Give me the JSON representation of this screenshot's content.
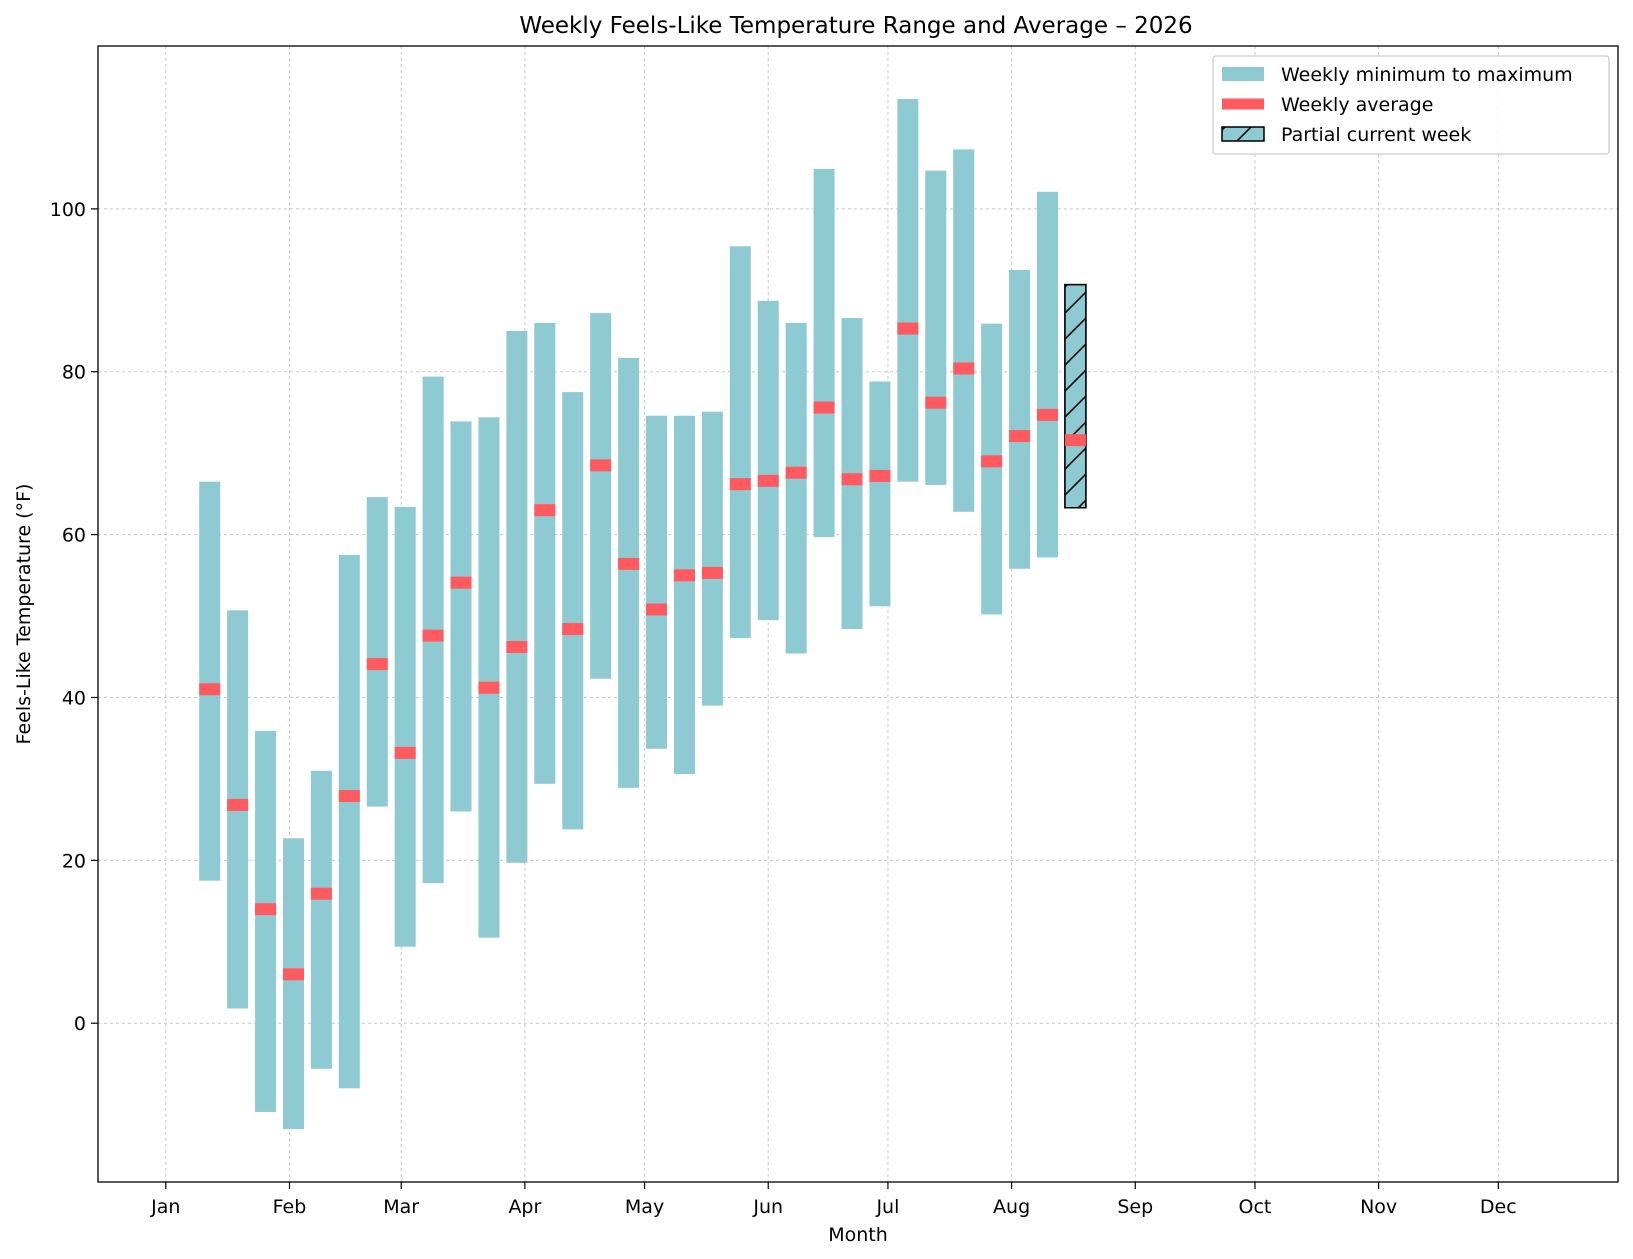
{
  "chart_data": {
    "type": "bar",
    "subtype": "floating-range-with-average",
    "title": "Weekly Feels-Like Temperature Range and Average – 2026",
    "xlabel": "Month",
    "ylabel": "Feels-Like Temperature (°F)",
    "x_axis_type": "date",
    "xlim": [
      "2025-12-15",
      "2026-12-31"
    ],
    "ylim": [
      -19.5,
      120
    ],
    "x_ticks": [
      {
        "date": "2026-01-01",
        "label": "Jan"
      },
      {
        "date": "2026-02-01",
        "label": "Feb"
      },
      {
        "date": "2026-03-01",
        "label": "Mar"
      },
      {
        "date": "2026-04-01",
        "label": "Apr"
      },
      {
        "date": "2026-05-01",
        "label": "May"
      },
      {
        "date": "2026-06-01",
        "label": "Jun"
      },
      {
        "date": "2026-07-01",
        "label": "Jul"
      },
      {
        "date": "2026-08-01",
        "label": "Aug"
      },
      {
        "date": "2026-09-01",
        "label": "Sep"
      },
      {
        "date": "2026-10-01",
        "label": "Oct"
      },
      {
        "date": "2026-11-01",
        "label": "Nov"
      },
      {
        "date": "2026-12-01",
        "label": "Dec"
      }
    ],
    "y_ticks": [
      0,
      20,
      40,
      60,
      80,
      100
    ],
    "grid": true,
    "legend_position": "top-right",
    "legend": [
      {
        "label": "Weekly minimum to maximum",
        "kind": "range"
      },
      {
        "label": "Weekly average",
        "kind": "average"
      },
      {
        "label": "Partial current week",
        "kind": "partial"
      }
    ],
    "colors": {
      "range": "#8ecad1",
      "average": "#ff5a5f",
      "partial_edge": "#000000",
      "grid": "#c8c8c8"
    },
    "weeks": [
      {
        "date": "2026-01-12",
        "min": 17.5,
        "max": 66.5,
        "avg": 41.0
      },
      {
        "date": "2026-01-19",
        "min": 1.8,
        "max": 50.7,
        "avg": 26.8
      },
      {
        "date": "2026-01-26",
        "min": -10.9,
        "max": 35.9,
        "avg": 14.0
      },
      {
        "date": "2026-02-02",
        "min": -13.0,
        "max": 22.7,
        "avg": 6.0
      },
      {
        "date": "2026-02-09",
        "min": -5.6,
        "max": 31.0,
        "avg": 15.9
      },
      {
        "date": "2026-02-16",
        "min": -8.0,
        "max": 57.5,
        "avg": 27.9
      },
      {
        "date": "2026-02-23",
        "min": 26.6,
        "max": 64.6,
        "avg": 44.1
      },
      {
        "date": "2026-03-02",
        "min": 9.4,
        "max": 63.4,
        "avg": 33.2
      },
      {
        "date": "2026-03-09",
        "min": 17.2,
        "max": 79.4,
        "avg": 47.6
      },
      {
        "date": "2026-03-16",
        "min": 26.0,
        "max": 73.9,
        "avg": 54.1
      },
      {
        "date": "2026-03-23",
        "min": 10.5,
        "max": 74.4,
        "avg": 41.2
      },
      {
        "date": "2026-03-30",
        "min": 19.7,
        "max": 85.0,
        "avg": 46.2
      },
      {
        "date": "2026-04-06",
        "min": 29.4,
        "max": 86.0,
        "avg": 63.0
      },
      {
        "date": "2026-04-13",
        "min": 23.8,
        "max": 77.5,
        "avg": 48.4
      },
      {
        "date": "2026-04-20",
        "min": 42.3,
        "max": 87.2,
        "avg": 68.5
      },
      {
        "date": "2026-04-27",
        "min": 28.9,
        "max": 81.7,
        "avg": 56.4
      },
      {
        "date": "2026-05-04",
        "min": 33.7,
        "max": 74.6,
        "avg": 50.8
      },
      {
        "date": "2026-05-11",
        "min": 30.6,
        "max": 74.6,
        "avg": 55.0
      },
      {
        "date": "2026-05-18",
        "min": 39.0,
        "max": 75.1,
        "avg": 55.3
      },
      {
        "date": "2026-05-25",
        "min": 47.3,
        "max": 95.4,
        "avg": 66.2
      },
      {
        "date": "2026-06-01",
        "min": 49.5,
        "max": 88.7,
        "avg": 66.6
      },
      {
        "date": "2026-06-08",
        "min": 45.4,
        "max": 86.0,
        "avg": 67.6
      },
      {
        "date": "2026-06-15",
        "min": 59.7,
        "max": 104.9,
        "avg": 75.6
      },
      {
        "date": "2026-06-22",
        "min": 48.4,
        "max": 86.6,
        "avg": 66.8
      },
      {
        "date": "2026-06-29",
        "min": 51.2,
        "max": 78.8,
        "avg": 67.2
      },
      {
        "date": "2026-07-06",
        "min": 66.5,
        "max": 113.5,
        "avg": 85.3
      },
      {
        "date": "2026-07-13",
        "min": 66.1,
        "max": 104.7,
        "avg": 76.2
      },
      {
        "date": "2026-07-20",
        "min": 62.8,
        "max": 107.3,
        "avg": 80.4
      },
      {
        "date": "2026-07-27",
        "min": 50.2,
        "max": 85.9,
        "avg": 69.0
      },
      {
        "date": "2026-08-03",
        "min": 55.8,
        "max": 92.5,
        "avg": 72.1
      },
      {
        "date": "2026-08-10",
        "min": 57.2,
        "max": 102.1,
        "avg": 74.7
      },
      {
        "date": "2026-08-17",
        "min": 63.3,
        "max": 90.7,
        "avg": 71.6,
        "partial": true
      }
    ]
  }
}
